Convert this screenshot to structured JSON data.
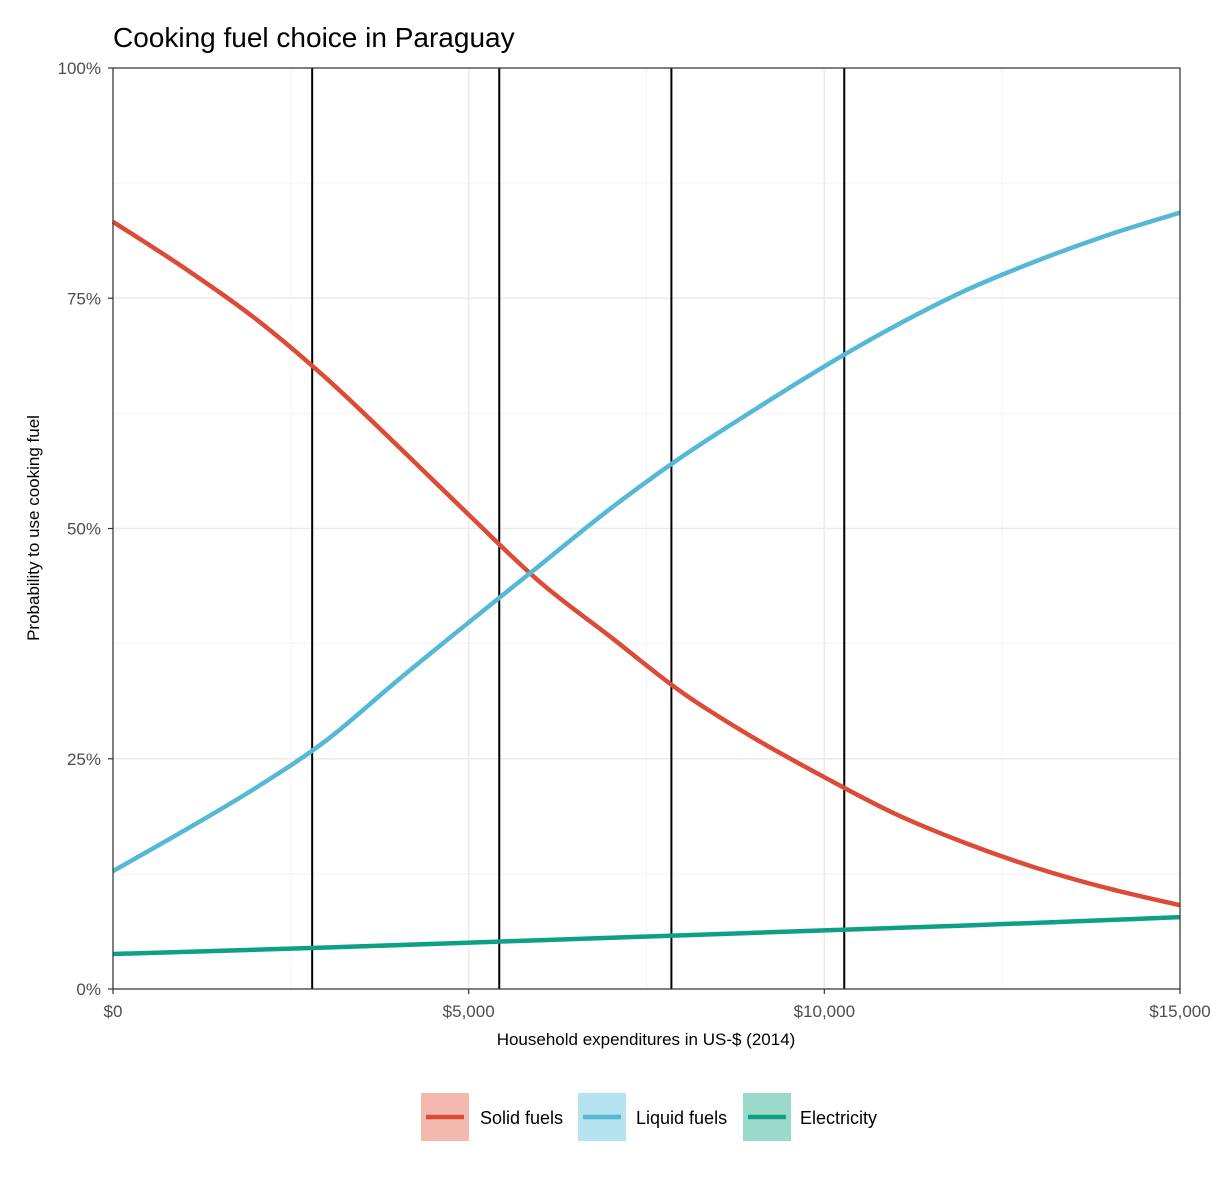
{
  "chart_data": {
    "type": "line",
    "title": "Cooking fuel choice in Paraguay",
    "xlabel": "Household expenditures in US-$ (2014)",
    "ylabel": "Probability to use cooking fuel",
    "xlim": [
      0,
      15000
    ],
    "ylim": [
      0,
      1
    ],
    "x_ticks": [
      0,
      5000,
      10000,
      15000
    ],
    "x_tick_labels": [
      "$0",
      "$5,000",
      "$10,000",
      "$15,000"
    ],
    "y_ticks": [
      0,
      0.25,
      0.5,
      0.75,
      1
    ],
    "y_tick_labels": [
      "0%",
      "25%",
      "50%",
      "75%",
      "100%"
    ],
    "grid": true,
    "legend_position": "bottom",
    "vertical_lines": [
      2800,
      5430,
      7850,
      10280
    ],
    "series": [
      {
        "name": "Solid fuels",
        "color": "#DC4B37",
        "legend_fill": "#F4B9AF",
        "x": [
          0,
          1000,
          2000,
          3000,
          4000,
          5000,
          6000,
          7000,
          8000,
          9000,
          10000,
          11000,
          12000,
          13000,
          14000,
          15000
        ],
        "y": [
          0.833,
          0.783,
          0.728,
          0.663,
          0.59,
          0.515,
          0.442,
          0.382,
          0.322,
          0.273,
          0.23,
          0.19,
          0.158,
          0.131,
          0.109,
          0.091
        ]
      },
      {
        "name": "Liquid fuels",
        "color": "#55B9D6",
        "legend_fill": "#B5E3EF",
        "x": [
          0,
          1000,
          2000,
          3000,
          4000,
          5000,
          6000,
          7000,
          8000,
          9000,
          10000,
          11000,
          12000,
          13000,
          14000,
          15000
        ],
        "y": [
          0.128,
          0.172,
          0.218,
          0.27,
          0.335,
          0.398,
          0.46,
          0.522,
          0.578,
          0.628,
          0.676,
          0.72,
          0.759,
          0.791,
          0.819,
          0.843
        ]
      },
      {
        "name": "Electricity",
        "color": "#0E9F85",
        "legend_fill": "#9BDACB",
        "x": [
          0,
          3000,
          6000,
          9000,
          12000,
          15000
        ],
        "y": [
          0.038,
          0.045,
          0.053,
          0.061,
          0.069,
          0.078
        ]
      }
    ]
  }
}
